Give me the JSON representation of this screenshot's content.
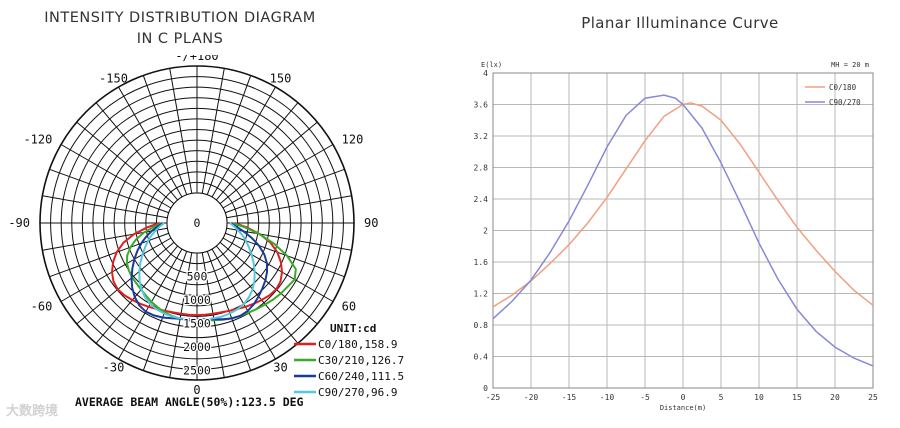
{
  "watermark": "大数跨境",
  "chart_data": [
    {
      "type": "polar",
      "title_lines": [
        "INTENSITY DISTRIBUTION DIAGRAM",
        "IN C PLANS"
      ],
      "angle_labels": [
        {
          "deg": 180,
          "text": "-/+180"
        },
        {
          "deg": -150,
          "text": "-150"
        },
        {
          "deg": 150,
          "text": "150"
        },
        {
          "deg": -120,
          "text": "-120"
        },
        {
          "deg": 120,
          "text": "120"
        },
        {
          "deg": -90,
          "text": "-90"
        },
        {
          "deg": 90,
          "text": "90"
        },
        {
          "deg": -60,
          "text": "-60"
        },
        {
          "deg": 60,
          "text": "60"
        },
        {
          "deg": -30,
          "text": "-30"
        },
        {
          "deg": 30,
          "text": "30"
        },
        {
          "deg": 0,
          "text": "0"
        }
      ],
      "radial_ticks": [
        "0",
        "500",
        "1000",
        "1500",
        "2000",
        "2500"
      ],
      "rmax": 2700,
      "unit_label": "UNIT:cd",
      "footer": "AVERAGE BEAM ANGLE(50%):123.5 DEG",
      "series": [
        {
          "name": "C0/180,158.9",
          "color": "#e02020",
          "points": [
            [
              -90,
              160
            ],
            [
              -85,
              420
            ],
            [
              -80,
              720
            ],
            [
              -75,
              980
            ],
            [
              -70,
              1180
            ],
            [
              -65,
              1330
            ],
            [
              -60,
              1450
            ],
            [
              -55,
              1530
            ],
            [
              -50,
              1560
            ],
            [
              -45,
              1540
            ],
            [
              -40,
              1500
            ],
            [
              -35,
              1460
            ],
            [
              -30,
              1420
            ],
            [
              -25,
              1380
            ],
            [
              -20,
              1350
            ],
            [
              -15,
              1330
            ],
            [
              -10,
              1320
            ],
            [
              -5,
              1320
            ],
            [
              0,
              1320
            ],
            [
              5,
              1320
            ],
            [
              10,
              1320
            ],
            [
              15,
              1330
            ],
            [
              20,
              1350
            ],
            [
              25,
              1380
            ],
            [
              30,
              1420
            ],
            [
              35,
              1460
            ],
            [
              40,
              1500
            ],
            [
              45,
              1540
            ],
            [
              50,
              1560
            ],
            [
              55,
              1530
            ],
            [
              60,
              1450
            ],
            [
              65,
              1330
            ],
            [
              70,
              1180
            ],
            [
              75,
              980
            ],
            [
              80,
              720
            ],
            [
              85,
              420
            ],
            [
              90,
              160
            ]
          ]
        },
        {
          "name": "C30/210,126.7",
          "color": "#3aaa2a",
          "points": [
            [
              -90,
              100
            ],
            [
              -85,
              280
            ],
            [
              -80,
              500
            ],
            [
              -75,
              700
            ],
            [
              -70,
              870
            ],
            [
              -65,
              1000
            ],
            [
              -60,
              1080
            ],
            [
              -55,
              1130
            ],
            [
              -50,
              1160
            ],
            [
              -45,
              1180
            ],
            [
              -40,
              1210
            ],
            [
              -35,
              1250
            ],
            [
              -30,
              1300
            ],
            [
              -25,
              1340
            ],
            [
              -20,
              1380
            ],
            [
              -15,
              1410
            ],
            [
              -10,
              1430
            ],
            [
              -5,
              1440
            ],
            [
              0,
              1440
            ],
            [
              5,
              1440
            ],
            [
              10,
              1460
            ],
            [
              15,
              1490
            ],
            [
              20,
              1520
            ],
            [
              25,
              1540
            ],
            [
              30,
              1560
            ],
            [
              35,
              1590
            ],
            [
              40,
              1620
            ],
            [
              45,
              1660
            ],
            [
              50,
              1690
            ],
            [
              55,
              1720
            ],
            [
              60,
              1760
            ],
            [
              65,
              1680
            ],
            [
              70,
              1400
            ],
            [
              75,
              1060
            ],
            [
              80,
              700
            ],
            [
              85,
              370
            ],
            [
              90,
              100
            ]
          ]
        },
        {
          "name": "C60/240,111.5",
          "color": "#1a3a9c",
          "points": [
            [
              -90,
              80
            ],
            [
              -85,
              200
            ],
            [
              -80,
              340
            ],
            [
              -75,
              480
            ],
            [
              -70,
              620
            ],
            [
              -65,
              760
            ],
            [
              -60,
              900
            ],
            [
              -55,
              1040
            ],
            [
              -50,
              1180
            ],
            [
              -45,
              1310
            ],
            [
              -40,
              1420
            ],
            [
              -35,
              1500
            ],
            [
              -30,
              1540
            ],
            [
              -25,
              1530
            ],
            [
              -20,
              1500
            ],
            [
              -15,
              1460
            ],
            [
              -10,
              1430
            ],
            [
              -5,
              1410
            ],
            [
              0,
              1400
            ],
            [
              5,
              1410
            ],
            [
              10,
              1440
            ],
            [
              15,
              1480
            ],
            [
              20,
              1520
            ],
            [
              25,
              1540
            ],
            [
              30,
              1520
            ],
            [
              35,
              1470
            ],
            [
              40,
              1400
            ],
            [
              45,
              1330
            ],
            [
              50,
              1260
            ],
            [
              55,
              1180
            ],
            [
              60,
              1080
            ],
            [
              65,
              940
            ],
            [
              70,
              760
            ],
            [
              75,
              560
            ],
            [
              80,
              360
            ],
            [
              85,
              190
            ],
            [
              90,
              80
            ]
          ]
        },
        {
          "name": "C90/270,96.9",
          "color": "#55c8e0",
          "points": [
            [
              -90,
              60
            ],
            [
              -85,
              150
            ],
            [
              -80,
              250
            ],
            [
              -75,
              360
            ],
            [
              -70,
              470
            ],
            [
              -65,
              580
            ],
            [
              -60,
              700
            ],
            [
              -55,
              830
            ],
            [
              -50,
              960
            ],
            [
              -45,
              1090
            ],
            [
              -40,
              1200
            ],
            [
              -35,
              1290
            ],
            [
              -30,
              1350
            ],
            [
              -25,
              1390
            ],
            [
              -20,
              1410
            ],
            [
              -15,
              1420
            ],
            [
              -10,
              1420
            ],
            [
              -5,
              1420
            ],
            [
              0,
              1420
            ],
            [
              5,
              1420
            ],
            [
              10,
              1420
            ],
            [
              15,
              1420
            ],
            [
              20,
              1410
            ],
            [
              25,
              1390
            ],
            [
              30,
              1350
            ],
            [
              35,
              1290
            ],
            [
              40,
              1200
            ],
            [
              45,
              1090
            ],
            [
              50,
              960
            ],
            [
              55,
              830
            ],
            [
              60,
              700
            ],
            [
              65,
              580
            ],
            [
              70,
              470
            ],
            [
              75,
              360
            ],
            [
              80,
              250
            ],
            [
              85,
              150
            ],
            [
              90,
              60
            ]
          ]
        }
      ]
    },
    {
      "type": "line",
      "title": "Planar Illuminance Curve",
      "xlabel": "Distance(m)",
      "ylabel": "E(lx)",
      "note": "MH = 20 m",
      "xlim": [
        -25,
        25
      ],
      "ylim": [
        0,
        4
      ],
      "xticks": [
        -25,
        -20,
        -15,
        -10,
        -5,
        0,
        5,
        10,
        15,
        20,
        25
      ],
      "yticks": [
        "0",
        "0.4",
        "0.8",
        "1.2",
        "1.6",
        "2",
        "2.4",
        "2.8",
        "3.2",
        "3.6",
        "4"
      ],
      "series": [
        {
          "name": "C0/180",
          "color": "#f0a080",
          "x": [
            -25,
            -22.5,
            -20,
            -17.5,
            -15,
            -12.5,
            -10,
            -7.5,
            -5,
            -2.5,
            0,
            1,
            2.5,
            5,
            7.5,
            10,
            12.5,
            15,
            17.5,
            20,
            22.5,
            25
          ],
          "y": [
            1.03,
            1.18,
            1.36,
            1.58,
            1.82,
            2.1,
            2.42,
            2.78,
            3.14,
            3.45,
            3.6,
            3.62,
            3.58,
            3.4,
            3.1,
            2.74,
            2.38,
            2.04,
            1.75,
            1.48,
            1.24,
            1.05
          ]
        },
        {
          "name": "C90/270",
          "color": "#8888d8",
          "x": [
            -25,
            -22.5,
            -20,
            -17.5,
            -15,
            -12.5,
            -10,
            -7.5,
            -5,
            -2.5,
            -1,
            0,
            2.5,
            5,
            7.5,
            10,
            12.5,
            15,
            17.5,
            20,
            22.5,
            25
          ],
          "y": [
            0.88,
            1.1,
            1.37,
            1.72,
            2.12,
            2.58,
            3.06,
            3.46,
            3.68,
            3.72,
            3.68,
            3.6,
            3.3,
            2.86,
            2.36,
            1.84,
            1.38,
            1.0,
            0.72,
            0.52,
            0.38,
            0.28
          ]
        }
      ]
    }
  ]
}
